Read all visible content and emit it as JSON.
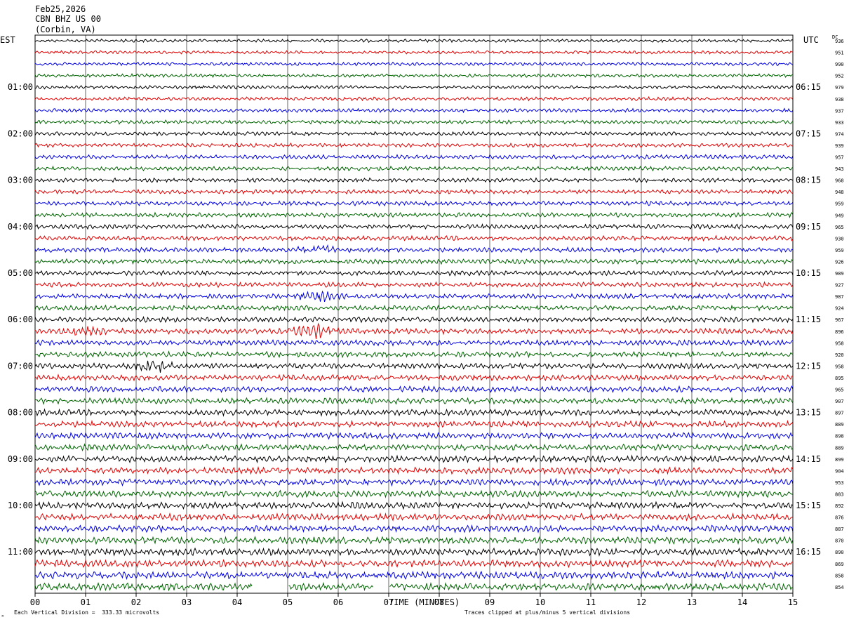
{
  "header": {
    "date": "Feb25,2026",
    "station": "CBN BHZ US 00",
    "location": "(Corbin, VA)"
  },
  "left_tz": "EST",
  "right_tz": "UTC",
  "dc_label": "DC",
  "footer": {
    "scale": "Each Vertical Division =  333.33 microvolts",
    "clip": "Traces clipped at plus/minus 5 vertical divisions",
    "xlabel": "TIME (MINUTES)"
  },
  "colors": {
    "trace_cycle": [
      "#000000",
      "#e00000",
      "#0000e0",
      "#006400"
    ],
    "grid": "#000000"
  },
  "chart_data": {
    "type": "line",
    "title": "CBN BHZ US 00",
    "xlabel": "TIME (MINUTES)",
    "xlim": [
      0,
      15
    ],
    "x_ticks": [
      "00",
      "01",
      "02",
      "03",
      "04",
      "05",
      "06",
      "07",
      "08",
      "09",
      "10",
      "11",
      "12",
      "13",
      "14",
      "15"
    ],
    "left_hour_labels": [
      "01:00",
      "02:00",
      "03:00",
      "04:00",
      "05:00",
      "06:00",
      "07:00",
      "08:00",
      "09:00",
      "10:00",
      "11:00"
    ],
    "right_hour_labels": [
      "06:15",
      "07:15",
      "08:15",
      "09:15",
      "10:15",
      "11:15",
      "12:15",
      "13:15",
      "14:15",
      "15:15",
      "16:15"
    ],
    "trace_minutes": 15,
    "dc_offsets": [
      "936",
      "951",
      "990",
      "952",
      "979",
      "938",
      "937",
      "933",
      "974",
      "939",
      "957",
      "943",
      "968",
      "948",
      "959",
      "949",
      "965",
      "930",
      "959",
      "926",
      "989",
      "927",
      "987",
      "924",
      "967",
      "896",
      "958",
      "920",
      "958",
      "895",
      "965",
      "907",
      "897",
      "889",
      "898",
      "889",
      "899",
      "904",
      "953",
      "883",
      "892",
      "876",
      "887",
      "870",
      "890",
      "869",
      "858",
      "854"
    ],
    "gap_minutes": [
      [
        4.3,
        5.0
      ],
      [
        6.7,
        7.0
      ]
    ],
    "events": [
      {
        "trace": 18,
        "minute": 5.6,
        "amplitude": "moderate"
      },
      {
        "trace": 22,
        "minute": 5.6,
        "amplitude": "moderate"
      },
      {
        "trace": 25,
        "minute": 5.5,
        "amplitude": "large"
      },
      {
        "trace": 25,
        "minute": 1.0,
        "amplitude": "moderate"
      },
      {
        "trace": 28,
        "minute": 2.3,
        "amplitude": "large"
      }
    ]
  }
}
